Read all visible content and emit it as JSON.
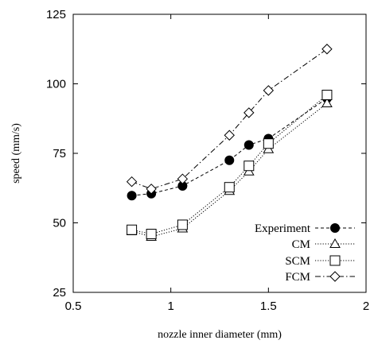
{
  "chart_data": {
    "type": "line",
    "xlabel": "nozzle inner diameter (mm)",
    "ylabel": "speed (mm/s)",
    "xlim": [
      0.5,
      2
    ],
    "ylim": [
      25,
      125
    ],
    "xticks": [
      "0.5",
      "1",
      "1.5",
      "2"
    ],
    "yticks": [
      "25",
      "50",
      "75",
      "100",
      "125"
    ],
    "grid": false,
    "legend_position": "bottom-right",
    "series": [
      {
        "name": "Experiment",
        "marker": "filled-circle",
        "dash": "dashed",
        "points": [
          [
            0.8,
            59.8
          ],
          [
            0.9,
            60.5
          ],
          [
            1.06,
            63.3
          ],
          [
            1.3,
            72.5
          ],
          [
            1.4,
            78
          ],
          [
            1.5,
            80.3
          ],
          [
            1.8,
            94.8
          ]
        ]
      },
      {
        "name": "CM",
        "marker": "open-triangle",
        "dash": "dotted",
        "points": [
          [
            0.8,
            47
          ],
          [
            0.9,
            45
          ],
          [
            1.06,
            48
          ],
          [
            1.3,
            61.5
          ],
          [
            1.4,
            68.5
          ],
          [
            1.5,
            76.5
          ],
          [
            1.8,
            93
          ]
        ]
      },
      {
        "name": "SCM",
        "marker": "open-square",
        "dash": "dotted",
        "points": [
          [
            0.8,
            47.5
          ],
          [
            0.9,
            46
          ],
          [
            1.06,
            49.3
          ],
          [
            1.3,
            62.8
          ],
          [
            1.4,
            70.5
          ],
          [
            1.5,
            78.5
          ],
          [
            1.8,
            96
          ]
        ]
      },
      {
        "name": "FCM",
        "marker": "open-diamond",
        "dash": "dash-dot",
        "points": [
          [
            0.8,
            64.8
          ],
          [
            0.9,
            62.2
          ],
          [
            1.06,
            65.8
          ],
          [
            1.3,
            81.5
          ],
          [
            1.4,
            89.6
          ],
          [
            1.5,
            97.6
          ],
          [
            1.8,
            112.5
          ]
        ]
      }
    ]
  }
}
